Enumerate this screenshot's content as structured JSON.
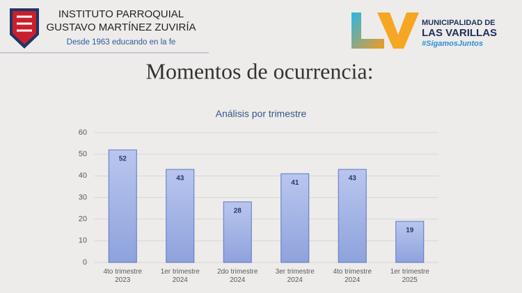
{
  "header": {
    "school_line1": "INSTITUTO PARROQUIAL",
    "school_line2": "GUSTAVO MARTÍNEZ ZUVIRÍA",
    "school_motto": "Desde 1963 educando en la fe",
    "municipality_line1": "MUNICIPALIDAD DE",
    "municipality_line2": "LAS VARILLAS",
    "municipality_tag": "#SigamosJuntos"
  },
  "slide_title": "Momentos de ocurrencia:",
  "chart_data": {
    "type": "bar",
    "title": "Análisis por trimestre",
    "categories": [
      "4to trimestre 2023",
      "1er trimestre 2024",
      "2do trimestre 2024",
      "3er trimestre 2024",
      "4to trimestre 2024",
      "1er trimestre 2025"
    ],
    "values": [
      52,
      43,
      28,
      41,
      43,
      19
    ],
    "color": "#a3b4e4",
    "ylim": [
      0,
      60
    ],
    "yticks": [
      0,
      10,
      20,
      30,
      40,
      50,
      60
    ],
    "grid": true
  }
}
